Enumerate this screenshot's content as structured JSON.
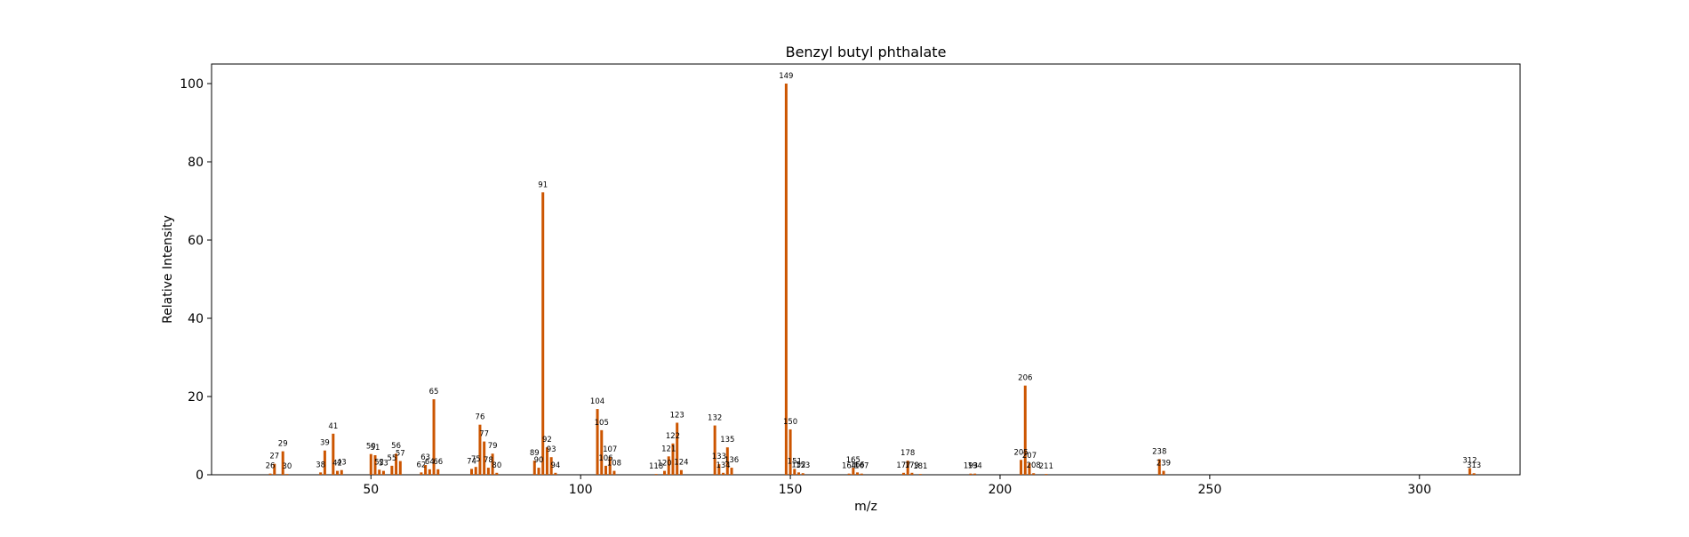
{
  "chart_data": {
    "type": "bar",
    "title": "Benzyl butyl phthalate",
    "xlabel": "m/z",
    "ylabel": "Relative Intensity",
    "xlim": [
      12,
      324
    ],
    "ylim": [
      0,
      105
    ],
    "xticks": [
      50,
      100,
      150,
      200,
      250,
      300
    ],
    "yticks": [
      0,
      20,
      40,
      60,
      80,
      100
    ],
    "grid": false,
    "bar_color": "#cc5500",
    "series": [
      {
        "name": "Relative Intensity",
        "points": [
          {
            "mz": 26,
            "value": 0.3
          },
          {
            "mz": 27,
            "value": 2.8
          },
          {
            "mz": 29,
            "value": 6.0
          },
          {
            "mz": 30,
            "value": 0.2
          },
          {
            "mz": 38,
            "value": 0.6
          },
          {
            "mz": 39,
            "value": 6.2
          },
          {
            "mz": 41,
            "value": 10.5
          },
          {
            "mz": 42,
            "value": 1.0
          },
          {
            "mz": 43,
            "value": 1.2
          },
          {
            "mz": 50,
            "value": 5.3
          },
          {
            "mz": 51,
            "value": 5.0
          },
          {
            "mz": 52,
            "value": 1.3
          },
          {
            "mz": 53,
            "value": 1.0
          },
          {
            "mz": 55,
            "value": 2.3
          },
          {
            "mz": 56,
            "value": 5.4
          },
          {
            "mz": 57,
            "value": 3.5
          },
          {
            "mz": 62,
            "value": 0.6
          },
          {
            "mz": 63,
            "value": 2.5
          },
          {
            "mz": 64,
            "value": 1.4
          },
          {
            "mz": 65,
            "value": 19.3
          },
          {
            "mz": 66,
            "value": 1.4
          },
          {
            "mz": 74,
            "value": 1.5
          },
          {
            "mz": 75,
            "value": 2.0
          },
          {
            "mz": 76,
            "value": 12.8
          },
          {
            "mz": 77,
            "value": 8.5
          },
          {
            "mz": 78,
            "value": 1.8
          },
          {
            "mz": 79,
            "value": 5.4
          },
          {
            "mz": 80,
            "value": 0.5
          },
          {
            "mz": 89,
            "value": 3.6
          },
          {
            "mz": 90,
            "value": 1.8
          },
          {
            "mz": 91,
            "value": 72.2
          },
          {
            "mz": 92,
            "value": 7.0
          },
          {
            "mz": 93,
            "value": 4.5
          },
          {
            "mz": 94,
            "value": 0.5
          },
          {
            "mz": 104,
            "value": 16.8
          },
          {
            "mz": 105,
            "value": 11.4
          },
          {
            "mz": 106,
            "value": 2.3
          },
          {
            "mz": 107,
            "value": 4.6
          },
          {
            "mz": 108,
            "value": 1.0
          },
          {
            "mz": 118,
            "value": 0.2
          },
          {
            "mz": 120,
            "value": 1.0
          },
          {
            "mz": 121,
            "value": 4.7
          },
          {
            "mz": 122,
            "value": 8.0
          },
          {
            "mz": 123,
            "value": 13.3
          },
          {
            "mz": 124,
            "value": 1.2
          },
          {
            "mz": 132,
            "value": 12.6
          },
          {
            "mz": 133,
            "value": 2.7
          },
          {
            "mz": 134,
            "value": 0.5
          },
          {
            "mz": 135,
            "value": 7.0
          },
          {
            "mz": 136,
            "value": 1.8
          },
          {
            "mz": 149,
            "value": 100.0
          },
          {
            "mz": 150,
            "value": 11.6
          },
          {
            "mz": 151,
            "value": 1.5
          },
          {
            "mz": 152,
            "value": 0.6
          },
          {
            "mz": 153,
            "value": 0.4
          },
          {
            "mz": 164,
            "value": 0.3
          },
          {
            "mz": 165,
            "value": 1.8
          },
          {
            "mz": 166,
            "value": 0.6
          },
          {
            "mz": 167,
            "value": 0.3
          },
          {
            "mz": 177,
            "value": 0.5
          },
          {
            "mz": 178,
            "value": 3.6
          },
          {
            "mz": 179,
            "value": 0.5
          },
          {
            "mz": 181,
            "value": 0.2
          },
          {
            "mz": 193,
            "value": 0.3
          },
          {
            "mz": 194,
            "value": 0.3
          },
          {
            "mz": 205,
            "value": 3.8
          },
          {
            "mz": 206,
            "value": 22.8
          },
          {
            "mz": 207,
            "value": 3.0
          },
          {
            "mz": 208,
            "value": 0.4
          },
          {
            "mz": 211,
            "value": 0.2
          },
          {
            "mz": 238,
            "value": 4.0
          },
          {
            "mz": 239,
            "value": 1.0
          },
          {
            "mz": 312,
            "value": 1.7
          },
          {
            "mz": 313,
            "value": 0.4
          }
        ]
      }
    ]
  }
}
